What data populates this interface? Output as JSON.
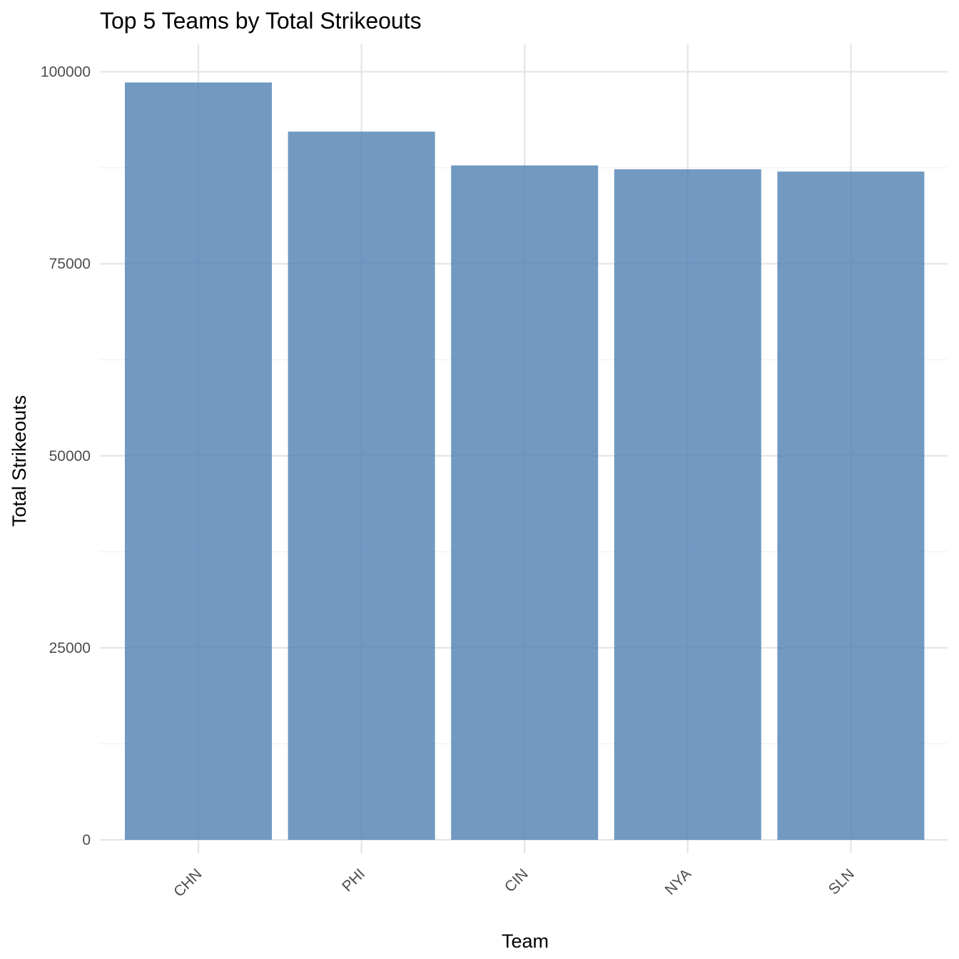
{
  "chart_data": {
    "type": "bar",
    "title": "Top 5 Teams by Total Strikeouts",
    "xlabel": "Team",
    "ylabel": "Total Strikeouts",
    "categories": [
      "CHN",
      "PHI",
      "CIN",
      "NYA",
      "SLN"
    ],
    "values": [
      98600,
      92200,
      87800,
      87300,
      87000
    ],
    "ylim": [
      0,
      100000
    ],
    "yticks": [
      0,
      25000,
      50000,
      75000,
      100000
    ],
    "ytick_labels": [
      "0",
      "25000",
      "50000",
      "75000",
      "100000"
    ],
    "grid": true,
    "x_tick_rotation": "45deg",
    "bar_color": "#4d7fb3",
    "bar_opacity": 0.8
  }
}
